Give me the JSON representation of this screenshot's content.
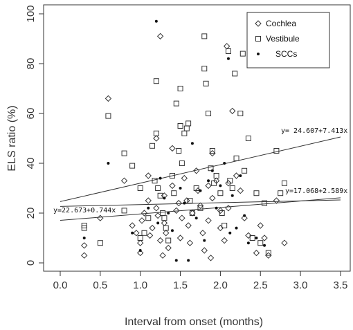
{
  "chart_data": {
    "type": "scatter",
    "xlabel": "Interval from onset (months)",
    "ylabel": "ELS ratio (%)",
    "xlim": [
      -0.2,
      3.6
    ],
    "ylim": [
      -3,
      102
    ],
    "x_ticks": [
      0,
      0.5,
      1,
      1.5,
      2,
      2.5,
      3,
      3.5
    ],
    "x_tick_labels": [
      "0.0",
      "0.5",
      "1.0",
      "1.5",
      "2.0",
      "2.5",
      "3.0",
      "3.5"
    ],
    "y_ticks": [
      0,
      20,
      40,
      60,
      80,
      100
    ],
    "y_tick_labels": [
      "0",
      "20",
      "40",
      "60",
      "80",
      "100"
    ],
    "grid": false,
    "legend_position": "top-right",
    "series": [
      {
        "name": "Cochlea",
        "marker": "diamond",
        "points": [
          [
            0.3,
            7
          ],
          [
            0.3,
            3
          ],
          [
            0.5,
            18
          ],
          [
            0.6,
            66
          ],
          [
            0.8,
            33
          ],
          [
            0.9,
            15
          ],
          [
            0.95,
            12
          ],
          [
            1.0,
            8
          ],
          [
            1.0,
            4
          ],
          [
            1.02,
            17
          ],
          [
            1.05,
            20
          ],
          [
            1.1,
            35
          ],
          [
            1.1,
            25
          ],
          [
            1.12,
            11
          ],
          [
            1.15,
            14
          ],
          [
            1.2,
            50
          ],
          [
            1.2,
            22
          ],
          [
            1.22,
            19
          ],
          [
            1.25,
            91
          ],
          [
            1.25,
            9
          ],
          [
            1.28,
            3
          ],
          [
            1.3,
            27
          ],
          [
            1.3,
            16
          ],
          [
            1.32,
            12
          ],
          [
            1.35,
            6
          ],
          [
            1.4,
            46
          ],
          [
            1.4,
            31
          ],
          [
            1.45,
            21
          ],
          [
            1.48,
            24
          ],
          [
            1.5,
            10
          ],
          [
            1.52,
            18
          ],
          [
            1.55,
            34
          ],
          [
            1.58,
            25
          ],
          [
            1.6,
            15
          ],
          [
            1.62,
            8
          ],
          [
            1.65,
            20
          ],
          [
            1.7,
            37
          ],
          [
            1.72,
            29
          ],
          [
            1.75,
            23
          ],
          [
            1.78,
            12
          ],
          [
            1.8,
            5
          ],
          [
            1.85,
            31
          ],
          [
            1.85,
            17
          ],
          [
            1.88,
            2
          ],
          [
            1.9,
            44
          ],
          [
            1.9,
            26
          ],
          [
            1.95,
            33
          ],
          [
            2.0,
            21
          ],
          [
            2.0,
            14
          ],
          [
            2.05,
            9
          ],
          [
            2.08,
            87
          ],
          [
            2.1,
            32
          ],
          [
            2.1,
            22
          ],
          [
            2.15,
            61
          ],
          [
            2.2,
            35
          ],
          [
            2.25,
            29
          ],
          [
            2.3,
            18
          ],
          [
            2.35,
            11
          ],
          [
            2.45,
            4
          ],
          [
            2.5,
            15
          ],
          [
            2.55,
            10
          ],
          [
            2.6,
            3
          ],
          [
            2.7,
            25
          ],
          [
            2.8,
            8
          ]
        ]
      },
      {
        "name": "Vestibule",
        "marker": "square",
        "points": [
          [
            0.3,
            15
          ],
          [
            0.3,
            14
          ],
          [
            0.5,
            8
          ],
          [
            0.6,
            59
          ],
          [
            0.8,
            44
          ],
          [
            0.8,
            21
          ],
          [
            0.9,
            39
          ],
          [
            1.0,
            30
          ],
          [
            1.0,
            10
          ],
          [
            1.05,
            12
          ],
          [
            1.1,
            18
          ],
          [
            1.15,
            47
          ],
          [
            1.18,
            33
          ],
          [
            1.2,
            73
          ],
          [
            1.2,
            52
          ],
          [
            1.22,
            30
          ],
          [
            1.25,
            27
          ],
          [
            1.28,
            20
          ],
          [
            1.3,
            18
          ],
          [
            1.32,
            14
          ],
          [
            1.35,
            9
          ],
          [
            1.4,
            35
          ],
          [
            1.42,
            28
          ],
          [
            1.45,
            64
          ],
          [
            1.48,
            45
          ],
          [
            1.5,
            55
          ],
          [
            1.5,
            70
          ],
          [
            1.52,
            40
          ],
          [
            1.55,
            52
          ],
          [
            1.58,
            54
          ],
          [
            1.6,
            56
          ],
          [
            1.62,
            25
          ],
          [
            1.65,
            20
          ],
          [
            1.7,
            30
          ],
          [
            1.75,
            22
          ],
          [
            1.8,
            91
          ],
          [
            1.8,
            78
          ],
          [
            1.82,
            72
          ],
          [
            1.85,
            60
          ],
          [
            1.88,
            38
          ],
          [
            1.9,
            45
          ],
          [
            1.92,
            32
          ],
          [
            1.95,
            35
          ],
          [
            2.0,
            28
          ],
          [
            2.02,
            20
          ],
          [
            2.05,
            15
          ],
          [
            2.1,
            85
          ],
          [
            2.12,
            33
          ],
          [
            2.15,
            30
          ],
          [
            2.18,
            76
          ],
          [
            2.2,
            42
          ],
          [
            2.25,
            60
          ],
          [
            2.28,
            84
          ],
          [
            2.3,
            37
          ],
          [
            2.35,
            50
          ],
          [
            2.4,
            10
          ],
          [
            2.45,
            28
          ],
          [
            2.5,
            8
          ],
          [
            2.55,
            24
          ],
          [
            2.6,
            4
          ],
          [
            2.7,
            45
          ],
          [
            2.75,
            28
          ],
          [
            2.8,
            32
          ]
        ]
      },
      {
        "name": "SCCs",
        "marker": "filled-circle",
        "points": [
          [
            0.3,
            10
          ],
          [
            0.6,
            40
          ],
          [
            0.9,
            12
          ],
          [
            1.0,
            5
          ],
          [
            1.1,
            22
          ],
          [
            1.2,
            97
          ],
          [
            1.22,
            16
          ],
          [
            1.25,
            34
          ],
          [
            1.3,
            26
          ],
          [
            1.35,
            20
          ],
          [
            1.4,
            13
          ],
          [
            1.45,
            1
          ],
          [
            1.5,
            30
          ],
          [
            1.55,
            24
          ],
          [
            1.6,
            1
          ],
          [
            1.65,
            48
          ],
          [
            1.7,
            18
          ],
          [
            1.75,
            29
          ],
          [
            1.8,
            9
          ],
          [
            1.85,
            33
          ],
          [
            1.9,
            37
          ],
          [
            1.95,
            22
          ],
          [
            2.0,
            31
          ],
          [
            2.05,
            40
          ],
          [
            2.1,
            82
          ],
          [
            2.12,
            12
          ],
          [
            2.15,
            27
          ],
          [
            2.2,
            14
          ],
          [
            2.25,
            35
          ],
          [
            2.3,
            19
          ],
          [
            2.35,
            8
          ],
          [
            2.45,
            10
          ],
          [
            2.55,
            7
          ]
        ]
      }
    ],
    "fit_lines": [
      {
        "label": "y= 24.607+7.413x",
        "intercept": 24.607,
        "slope": 7.413
      },
      {
        "label": "y=17.068+2.589x",
        "intercept": 17.068,
        "slope": 2.589
      },
      {
        "label": "y=22.673+0.744x",
        "intercept": 22.673,
        "slope": 0.744
      }
    ]
  }
}
